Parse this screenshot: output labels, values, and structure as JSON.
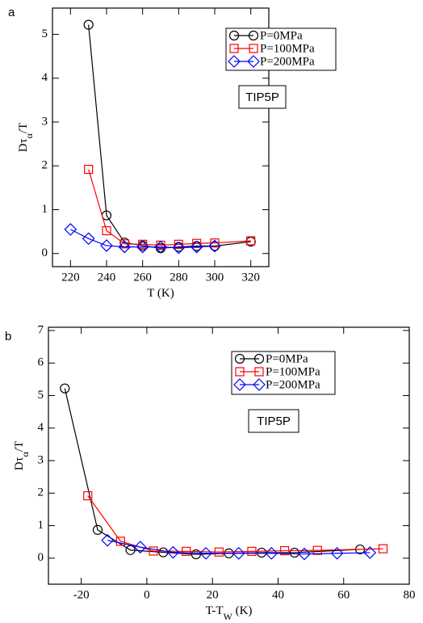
{
  "chart_data": [
    {
      "type": "line",
      "panel": "a",
      "xlabel": [
        "T (K)"
      ],
      "ylabel": [
        "Dτ",
        "α",
        "/T"
      ],
      "annotation": "TIP5P",
      "xlim": [
        210,
        330
      ],
      "xticks": [
        220,
        240,
        260,
        280,
        300,
        320
      ],
      "ylim": [
        -0.3,
        5.6
      ],
      "yticks": [
        0,
        1,
        2,
        3,
        4,
        5
      ],
      "series": [
        {
          "name": "P=0MPa",
          "color": "#000000",
          "marker": "circle",
          "x": [
            230,
            240,
            250,
            260,
            270,
            280,
            290,
            300,
            320
          ],
          "values": [
            5.22,
            0.87,
            0.25,
            0.18,
            0.12,
            0.15,
            0.17,
            0.17,
            0.27
          ]
        },
        {
          "name": "P=100MPa",
          "color": "#ff0000",
          "marker": "square",
          "x": [
            230,
            240,
            250,
            260,
            270,
            280,
            290,
            300,
            320
          ],
          "values": [
            1.92,
            0.52,
            0.22,
            0.21,
            0.19,
            0.21,
            0.23,
            0.24,
            0.29
          ]
        },
        {
          "name": "P=200MPa",
          "color": "#0000ff",
          "marker": "diamond",
          "x": [
            220,
            230,
            240,
            250,
            260,
            270,
            280,
            290,
            300
          ],
          "values": [
            0.55,
            0.34,
            0.18,
            0.15,
            0.15,
            0.15,
            0.13,
            0.15,
            0.17
          ]
        }
      ]
    },
    {
      "type": "line",
      "panel": "b",
      "xlabel": [
        "T-T",
        "W",
        " (K)"
      ],
      "ylabel": [
        "Dτ",
        "α",
        "/T"
      ],
      "annotation": "TIP5P",
      "xlim": [
        -30,
        80
      ],
      "xticks": [
        -20,
        0,
        20,
        40,
        60,
        80
      ],
      "ylim": [
        -0.8,
        7.1
      ],
      "yticks": [
        0,
        1,
        2,
        3,
        4,
        5,
        6,
        7
      ],
      "series": [
        {
          "name": "P=0MPa",
          "color": "#000000",
          "marker": "circle",
          "x": [
            -25,
            -15,
            -5,
            5,
            15,
            25,
            35,
            45,
            65
          ],
          "values": [
            5.22,
            0.87,
            0.25,
            0.18,
            0.12,
            0.15,
            0.17,
            0.17,
            0.27
          ]
        },
        {
          "name": "P=100MPa",
          "color": "#ff0000",
          "marker": "square",
          "x": [
            -18,
            -8,
            2,
            12,
            22,
            32,
            42,
            52,
            72
          ],
          "values": [
            1.92,
            0.52,
            0.22,
            0.21,
            0.19,
            0.21,
            0.23,
            0.24,
            0.29
          ]
        },
        {
          "name": "P=200MPa",
          "color": "#0000ff",
          "marker": "diamond",
          "x": [
            -12,
            -2,
            8,
            18,
            28,
            38,
            48,
            58,
            68
          ],
          "values": [
            0.55,
            0.34,
            0.18,
            0.15,
            0.15,
            0.15,
            0.13,
            0.15,
            0.17
          ]
        }
      ]
    }
  ]
}
